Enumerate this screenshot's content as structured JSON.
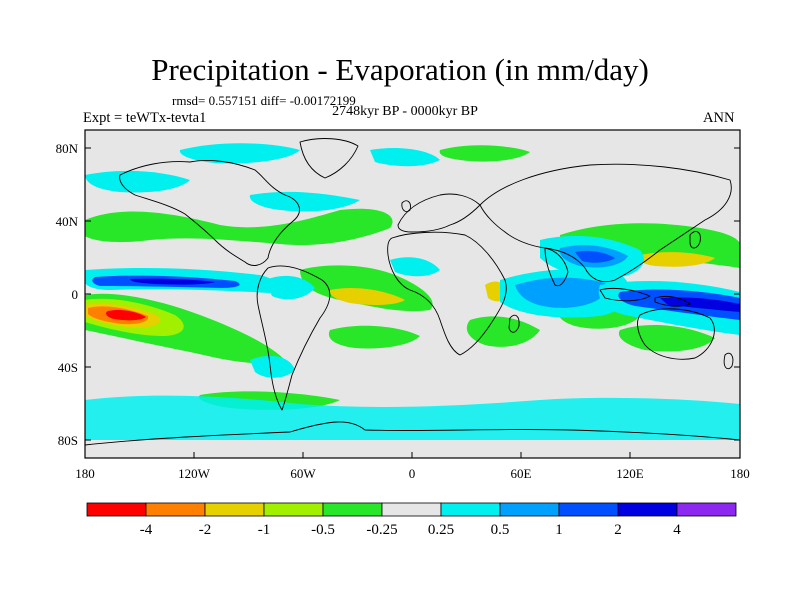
{
  "title": "Precipitation - Evaporation (in mm/day)",
  "stats": "rmsd= 0.557151  diff= -0.00172199",
  "period": "2748kyr BP - 0000kyr BP",
  "experiment": "Expt = teWTx-tevta1",
  "season": "ANN",
  "map": {
    "projection": "cylindrical equidistant",
    "lon_range": [
      -180,
      180
    ],
    "lat_range": [
      -90,
      90
    ],
    "lat_labels": [
      "80N",
      "40N",
      "0",
      "40S",
      "80S"
    ],
    "lon_labels": [
      "180",
      "120W",
      "60W",
      "0",
      "60E",
      "120E",
      "180"
    ]
  },
  "colorbar": {
    "colors": [
      "#ff0000",
      "#ff8000",
      "#e6d000",
      "#a0f000",
      "#28e628",
      "#e6e6e6",
      "#00f0f0",
      "#00a0ff",
      "#0050ff",
      "#0000e0",
      "#8c28f0"
    ],
    "labels": [
      "-4",
      "-2",
      "-1",
      "-0.5",
      "-0.25",
      "0.25",
      "0.5",
      "1",
      "2",
      "4"
    ]
  }
}
